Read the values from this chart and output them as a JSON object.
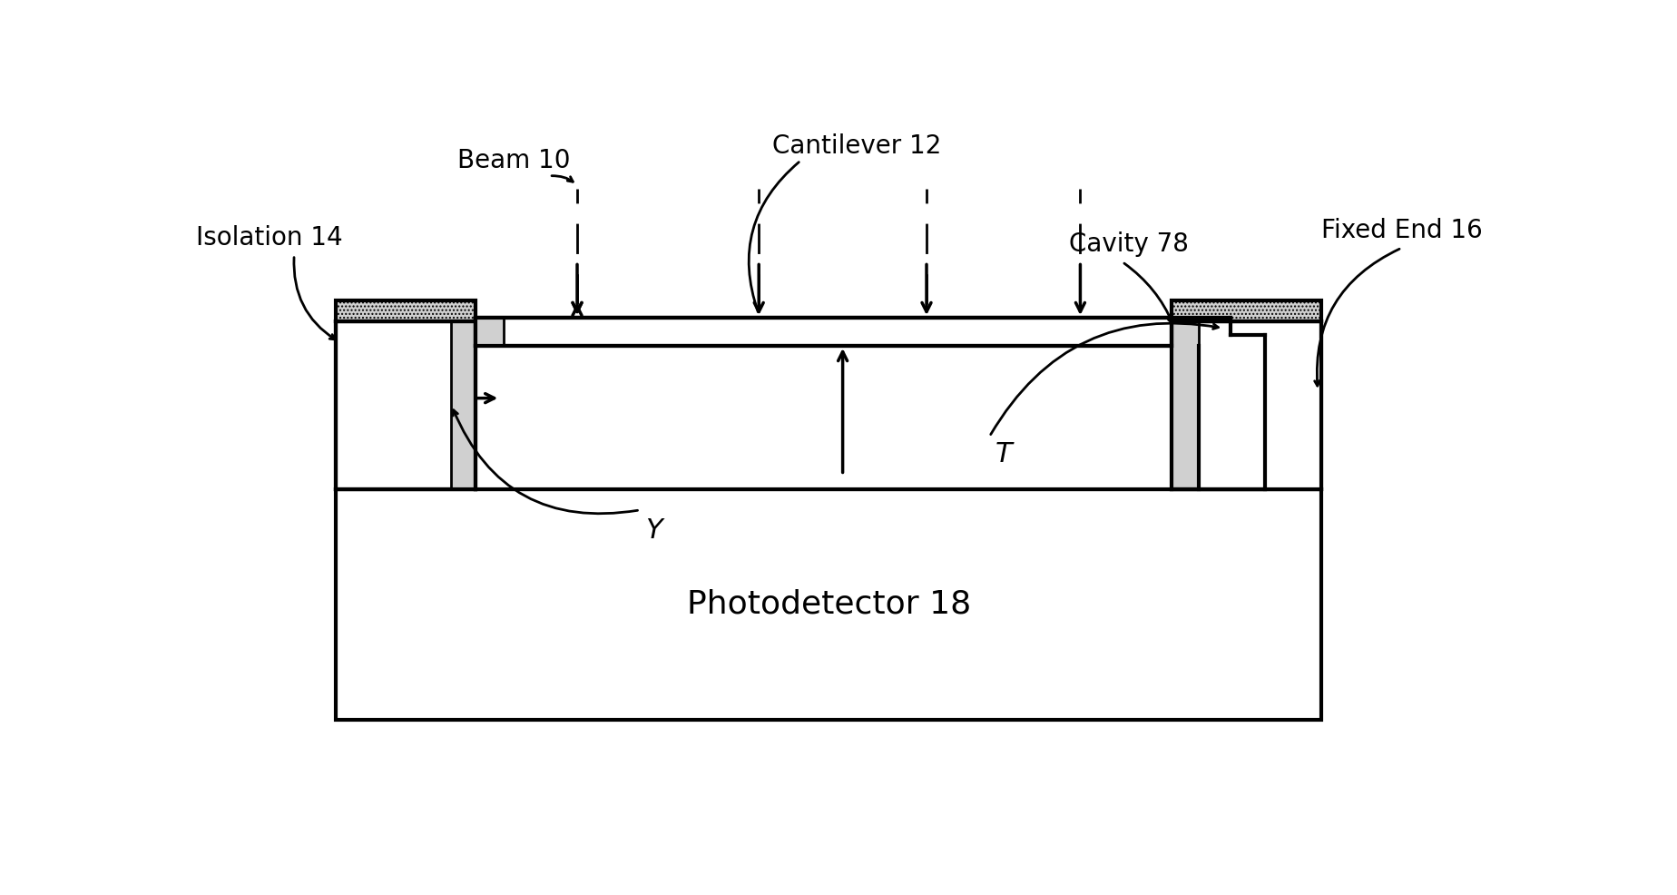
{
  "bg_color": "#ffffff",
  "line_color": "#000000",
  "labels": {
    "beam": "Beam 10",
    "cantilever": "Cantilever 12",
    "isolation": "Isolation 14",
    "cavity": "Cavity 78",
    "fixed_end": "Fixed End 16",
    "photodetector": "Photodetector 18",
    "Y": "Y",
    "T": "T"
  },
  "figsize": [
    18.48,
    9.86
  ],
  "dpi": 100
}
